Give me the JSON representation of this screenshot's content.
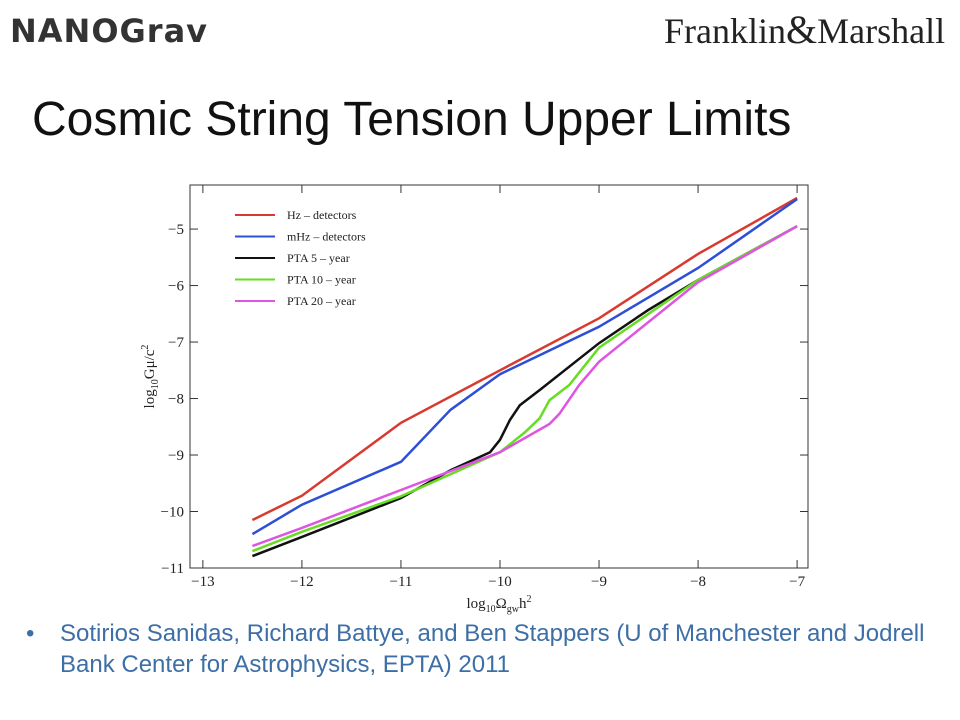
{
  "header": {
    "left_logo": "NANOGrav",
    "right_logo_left": "Franklin",
    "right_logo_amp": "&",
    "right_logo_right": "Marshall"
  },
  "title": "Cosmic String Tension Upper Limits",
  "chart_data": {
    "type": "line",
    "xlabel": [
      "log",
      "10",
      "Ω",
      "gw",
      "h",
      "2"
    ],
    "ylabel": [
      "log",
      "10",
      "Gμ/c",
      "2"
    ],
    "xlim": [
      -13.13,
      -6.89
    ],
    "ylim": [
      -11,
      -4.22
    ],
    "xticks": [
      {
        "value": -13,
        "label": "−13"
      },
      {
        "value": -12,
        "label": "−12"
      },
      {
        "value": -11,
        "label": "−11"
      },
      {
        "value": -10,
        "label": "−10"
      },
      {
        "value": -9,
        "label": "−9"
      },
      {
        "value": -8,
        "label": "−8"
      },
      {
        "value": -7,
        "label": "−7"
      }
    ],
    "yticks": [
      {
        "value": -11,
        "label": "−11"
      },
      {
        "value": -10,
        "label": "−10"
      },
      {
        "value": -9,
        "label": "−9"
      },
      {
        "value": -8,
        "label": "−8"
      },
      {
        "value": -7,
        "label": "−7"
      },
      {
        "value": -6,
        "label": "−6"
      },
      {
        "value": -5,
        "label": "−5"
      }
    ],
    "legend": "upper left",
    "series": [
      {
        "name": "Hz – detectors",
        "color": "#d93a2f",
        "x": [
          -12.5,
          -12,
          -11,
          -10,
          -9,
          -8,
          -7
        ],
        "values": [
          -10.15,
          -9.72,
          -8.43,
          -7.5,
          -6.58,
          -5.44,
          -4.45
        ]
      },
      {
        "name": "mHz – detectors",
        "color": "#2c4fd6",
        "x": [
          -12.5,
          -12,
          -11,
          -10.5,
          -10,
          -9,
          -8,
          -7
        ],
        "values": [
          -10.4,
          -9.88,
          -9.12,
          -8.2,
          -7.57,
          -6.73,
          -5.69,
          -4.47
        ]
      },
      {
        "name": "PTA 5 – year",
        "color": "#111111",
        "x": [
          -12.5,
          -12,
          -11,
          -10.5,
          -10.1,
          -10,
          -9.9,
          -9.8,
          -9.6,
          -9,
          -8.5,
          -8,
          -7
        ],
        "values": [
          -10.79,
          -10.45,
          -9.76,
          -9.27,
          -8.95,
          -8.73,
          -8.38,
          -8.12,
          -7.85,
          -7.02,
          -6.43,
          -5.9,
          -4.95
        ]
      },
      {
        "name": "PTA 10 – year",
        "color": "#66dd22",
        "x": [
          -12.5,
          -12,
          -11,
          -10,
          -9.75,
          -9.6,
          -9.5,
          -9.3,
          -9,
          -8,
          -7
        ],
        "values": [
          -10.7,
          -10.36,
          -9.73,
          -8.95,
          -8.6,
          -8.35,
          -8.03,
          -7.76,
          -7.1,
          -5.9,
          -4.95
        ]
      },
      {
        "name": "PTA 20 – year",
        "color": "#dd55e0",
        "x": [
          -12.5,
          -12,
          -11,
          -10,
          -9.5,
          -9.4,
          -9.2,
          -9,
          -8,
          -7
        ],
        "values": [
          -10.61,
          -10.29,
          -9.62,
          -8.95,
          -8.45,
          -8.27,
          -7.76,
          -7.35,
          -5.94,
          -4.95
        ]
      }
    ]
  },
  "bullet": "Sotirios Sanidas, Richard Battye, and Ben Stappers (U of Manchester and Jodrell Bank Center for Astrophysics, EPTA) 2011"
}
